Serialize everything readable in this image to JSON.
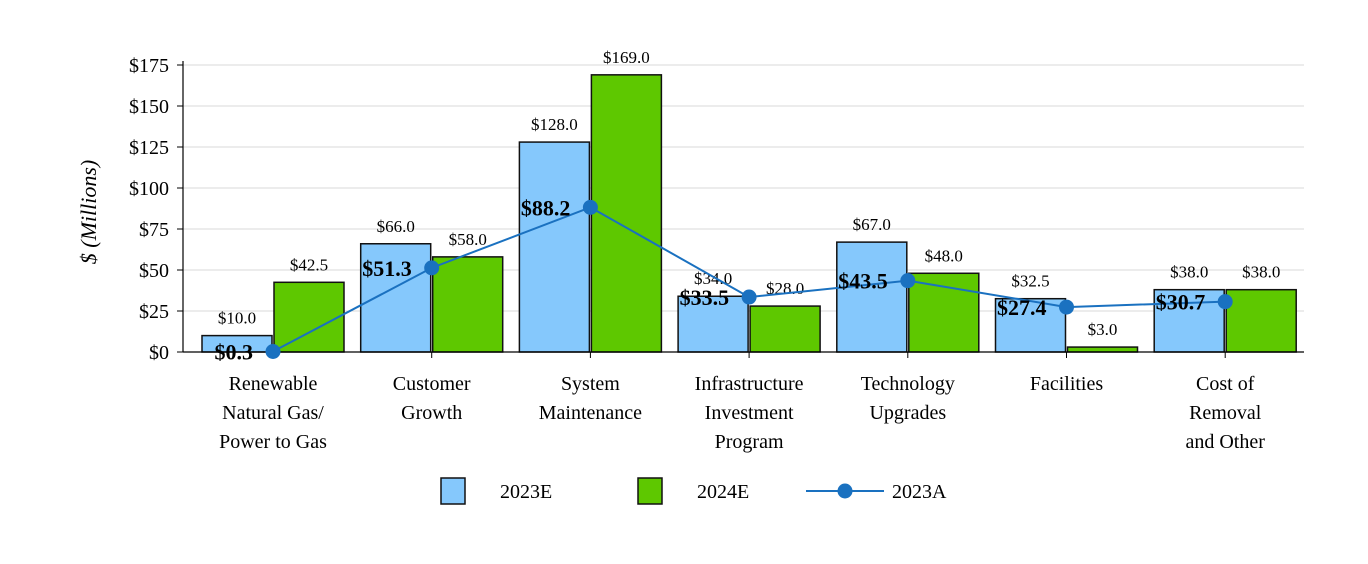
{
  "chart_data": {
    "type": "bar",
    "ylabel": "$ (Millions)",
    "ylim": [
      0,
      175
    ],
    "yticks": [
      0,
      25,
      50,
      75,
      100,
      125,
      150,
      175
    ],
    "ytick_labels": [
      "$0",
      "$25",
      "$50",
      "$75",
      "$100",
      "$125",
      "$150",
      "$175"
    ],
    "grid": true,
    "legend_position": "bottom",
    "categories": [
      [
        "Renewable",
        "Natural Gas/",
        "Power to Gas"
      ],
      [
        "Customer",
        "Growth"
      ],
      [
        "System",
        "Maintenance"
      ],
      [
        "Infrastructure",
        "Investment",
        "Program"
      ],
      [
        "Technology",
        "Upgrades"
      ],
      [
        "Facilities"
      ],
      [
        "Cost of",
        "Removal",
        "and Other"
      ]
    ],
    "series": [
      {
        "name": "2023E",
        "kind": "bar",
        "color": "#85C8FC",
        "values": [
          10.0,
          66.0,
          128.0,
          34.0,
          67.0,
          32.5,
          38.0
        ],
        "labels": [
          "$10.0",
          "$66.0",
          "$128.0",
          "$34.0",
          "$67.0",
          "$32.5",
          "$38.0"
        ]
      },
      {
        "name": "2024E",
        "kind": "bar",
        "color": "#5EC800",
        "values": [
          42.5,
          58.0,
          169.0,
          28.0,
          48.0,
          3.0,
          38.0
        ],
        "labels": [
          "$42.5",
          "$58.0",
          "$169.0",
          "$28.0",
          "$48.0",
          "$3.0",
          "$38.0"
        ]
      },
      {
        "name": "2023A",
        "kind": "line",
        "color": "#1A71C0",
        "values": [
          0.3,
          51.3,
          88.2,
          33.5,
          43.5,
          27.4,
          30.7
        ],
        "labels": [
          "$0.3",
          "$51.3",
          "$88.2",
          "$33.5",
          "$43.5",
          "$27.4",
          "$30.7"
        ]
      }
    ]
  }
}
